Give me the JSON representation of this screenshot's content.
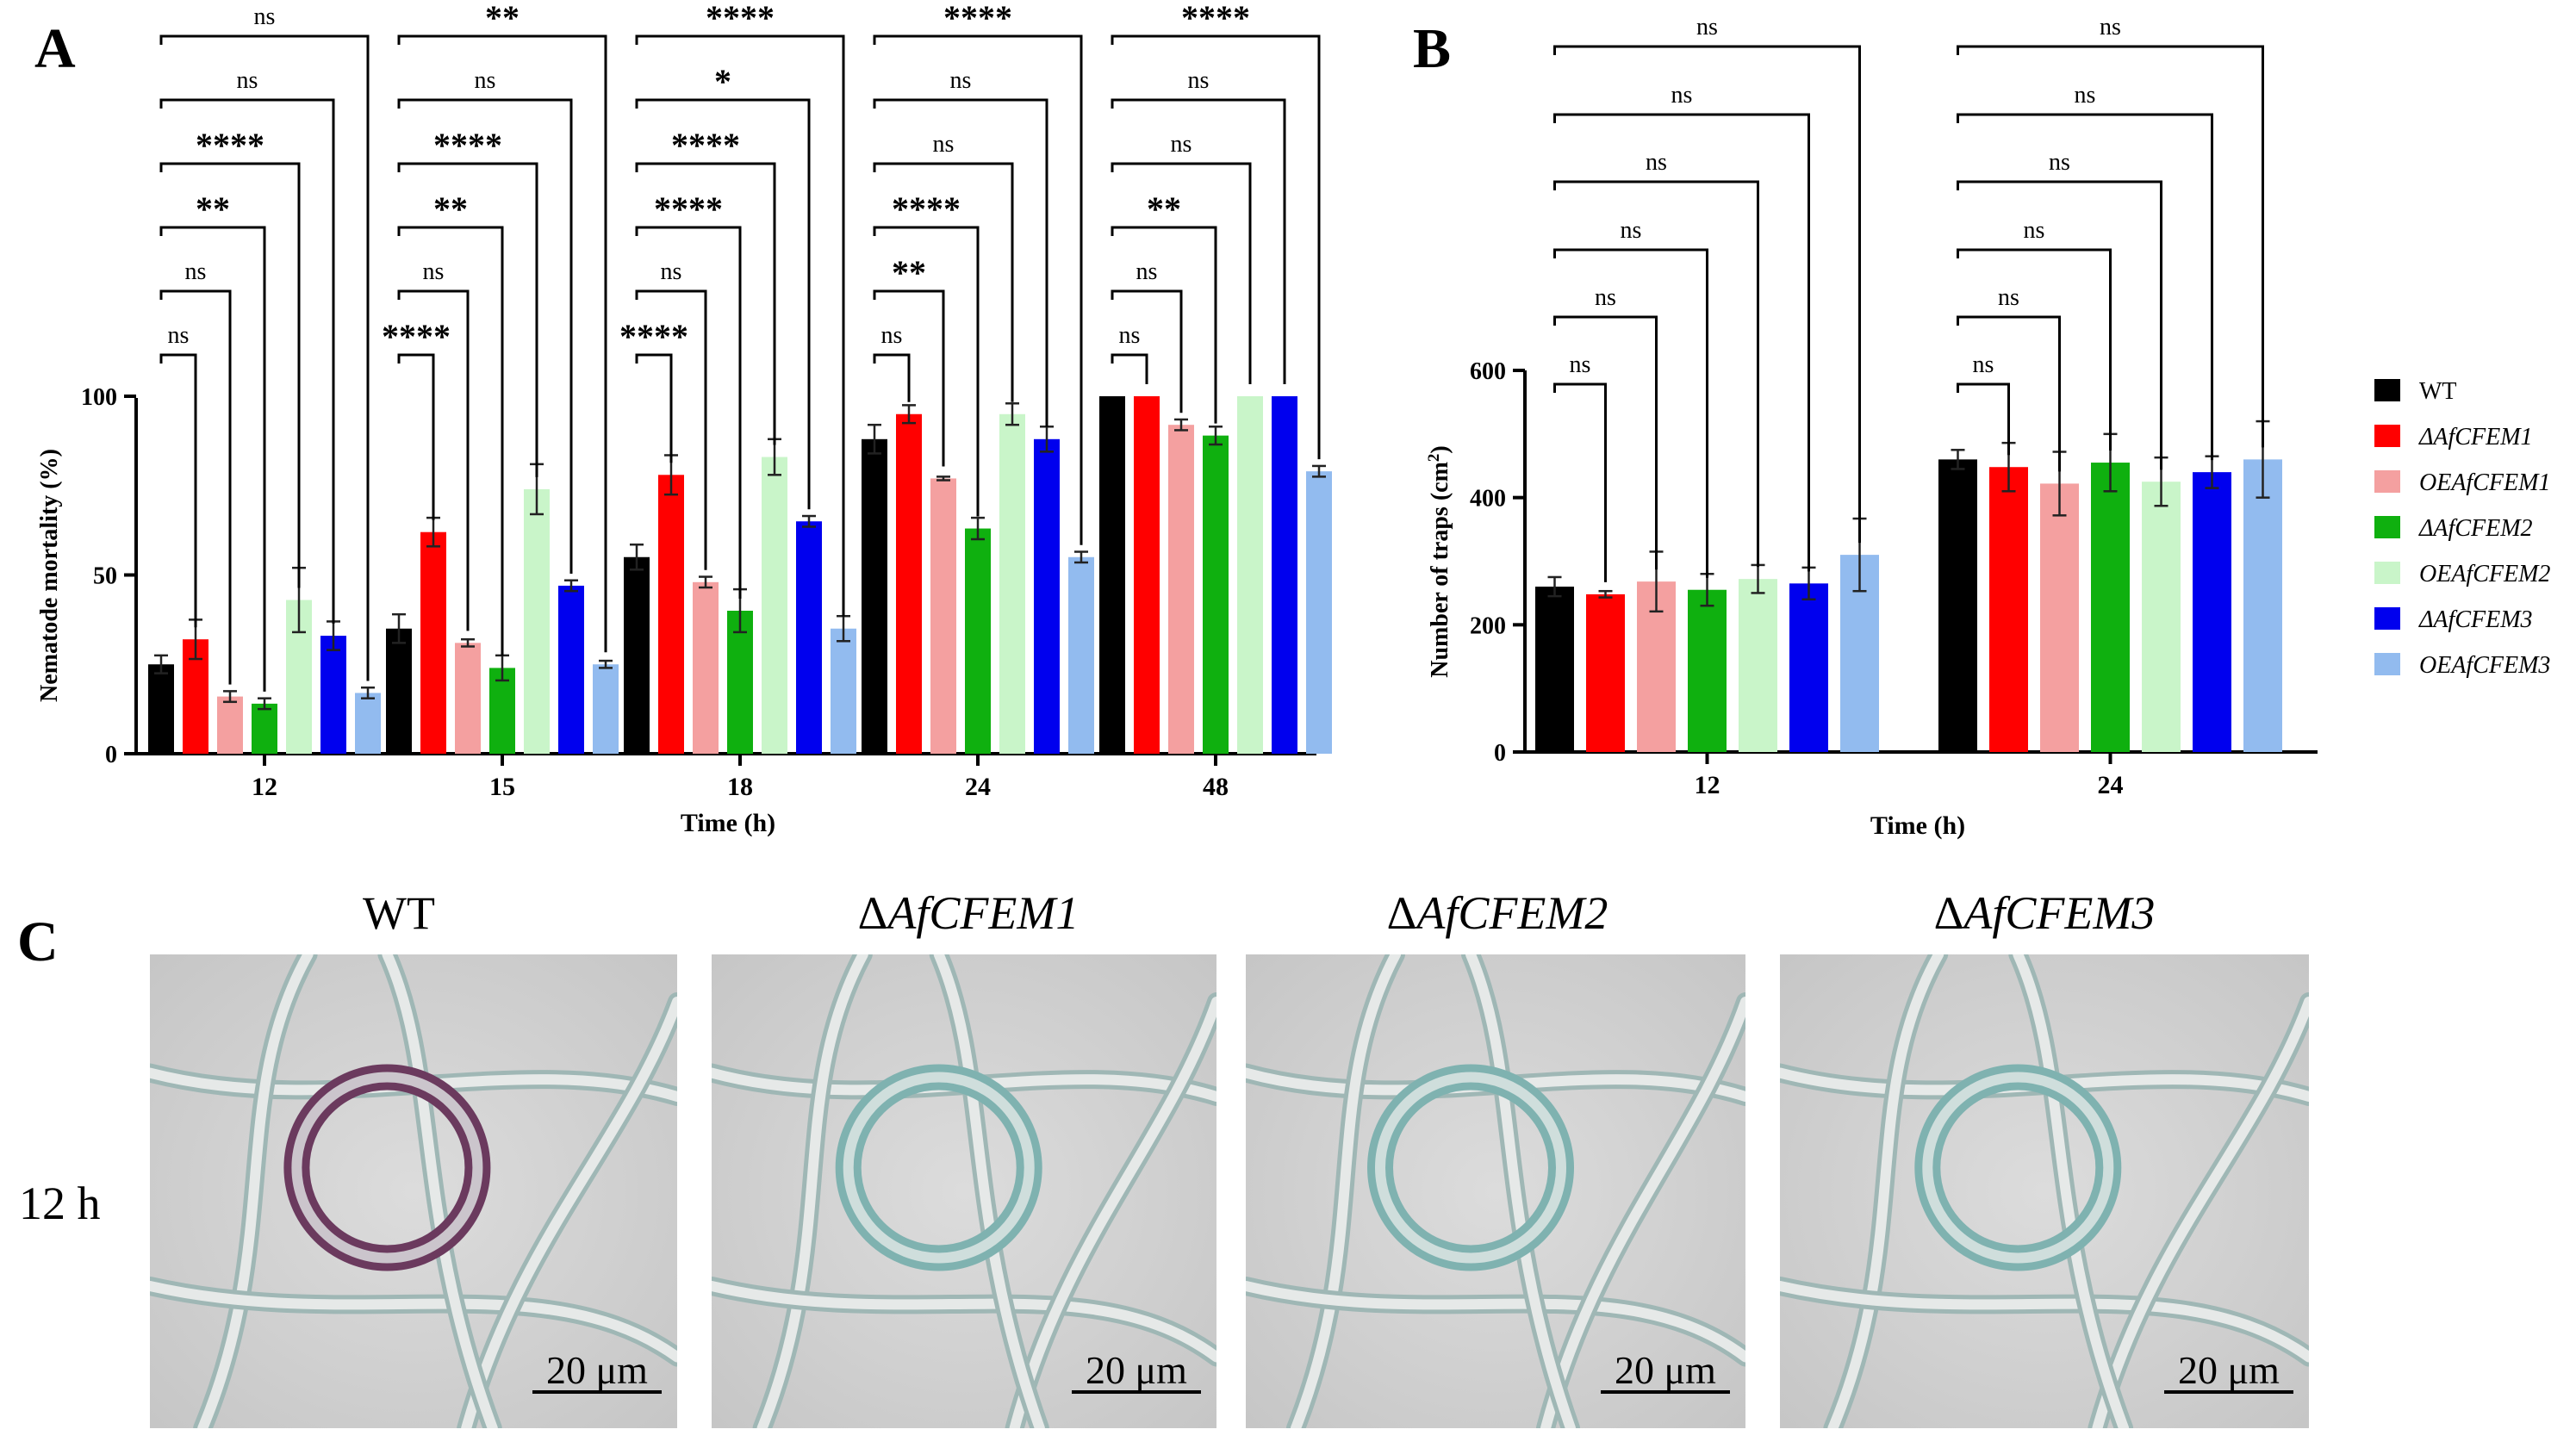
{
  "colors": {
    "WT": "#000000",
    "ΔAfCFEM1": "#ff0000",
    "OEAfCFEM1": "#f4a0a0",
    "ΔAfCFEM2": "#0fb00f",
    "OEAfCFEM2": "#c9f5c9",
    "ΔAfCFEM3": "#0000ee",
    "OEAfCFEM3": "#92bbef"
  },
  "panels": {
    "A": "A",
    "B": "B",
    "C": "C"
  },
  "chart_data": [
    {
      "panel": "A",
      "type": "bar",
      "title": "",
      "xlabel": "Time (h)",
      "ylabel": "Nematode mortality (%)",
      "ylim": [
        0,
        100
      ],
      "yticks": [
        0,
        50,
        100
      ],
      "categories": [
        "12",
        "15",
        "18",
        "24",
        "48"
      ],
      "series": [
        {
          "name": "WT",
          "values": [
            25,
            35,
            55,
            88,
            100
          ],
          "errors": [
            2.5,
            4,
            3.5,
            4,
            0
          ]
        },
        {
          "name": "ΔAfCFEM1",
          "values": [
            32,
            62,
            78,
            95,
            100
          ],
          "errors": [
            5.5,
            4,
            5.5,
            2.5,
            0
          ]
        },
        {
          "name": "OEAfCFEM1",
          "values": [
            16,
            31,
            48,
            77,
            92
          ],
          "errors": [
            1.5,
            1,
            1.5,
            0.5,
            1.5
          ]
        },
        {
          "name": "ΔAfCFEM2",
          "values": [
            14,
            24,
            40,
            63,
            89
          ],
          "errors": [
            1.5,
            3.5,
            6,
            3,
            2.5
          ]
        },
        {
          "name": "OEAfCFEM2",
          "values": [
            43,
            74,
            83,
            95,
            100
          ],
          "errors": [
            9,
            7,
            5,
            3,
            0
          ]
        },
        {
          "name": "ΔAfCFEM3",
          "values": [
            33,
            47,
            65,
            88,
            100
          ],
          "errors": [
            4,
            1.5,
            1.5,
            3.5,
            0
          ]
        },
        {
          "name": "OEAfCFEM3",
          "values": [
            17,
            25,
            35,
            55,
            79
          ],
          "errors": [
            1.5,
            1,
            3.5,
            1.5,
            1.5
          ]
        }
      ],
      "significance": [
        [
          "ns",
          "ns",
          "**",
          "****",
          "ns",
          "ns"
        ],
        [
          "****",
          "ns",
          "**",
          "****",
          "ns",
          "**"
        ],
        [
          "****",
          "ns",
          "****",
          "****",
          "*",
          "****"
        ],
        [
          "ns",
          "**",
          "****",
          "ns",
          "ns",
          "****"
        ],
        [
          "ns",
          "ns",
          "**",
          "ns",
          "ns",
          "****"
        ]
      ]
    },
    {
      "panel": "B",
      "type": "bar",
      "title": "",
      "xlabel": "Time (h)",
      "ylabel": "Number of traps (cm",
      "ylabel_sup": "2",
      "ylabel_end": ")",
      "ylim": [
        0,
        600
      ],
      "yticks": [
        0,
        200,
        400,
        600
      ],
      "categories": [
        "12",
        "24"
      ],
      "series": [
        {
          "name": "WT",
          "values": [
            260,
            460
          ],
          "errors": [
            15,
            15
          ]
        },
        {
          "name": "ΔAfCFEM1",
          "values": [
            248,
            448
          ],
          "errors": [
            5,
            38
          ]
        },
        {
          "name": "OEAfCFEM1",
          "values": [
            268,
            422
          ],
          "errors": [
            47,
            50
          ]
        },
        {
          "name": "ΔAfCFEM2",
          "values": [
            255,
            455
          ],
          "errors": [
            25,
            45
          ]
        },
        {
          "name": "OEAfCFEM2",
          "values": [
            272,
            425
          ],
          "errors": [
            22,
            38
          ]
        },
        {
          "name": "ΔAfCFEM3",
          "values": [
            265,
            440
          ],
          "errors": [
            25,
            25
          ]
        },
        {
          "name": "OEAfCFEM3",
          "values": [
            310,
            460
          ],
          "errors": [
            57,
            60
          ]
        }
      ],
      "significance": [
        [
          "ns",
          "ns",
          "ns",
          "ns",
          "ns",
          "ns"
        ],
        [
          "ns",
          "ns",
          "ns",
          "ns",
          "ns",
          "ns"
        ]
      ]
    }
  ],
  "legend": [
    "WT",
    "ΔAfCFEM1",
    "OEAfCFEM1",
    "ΔAfCFEM2",
    "OEAfCFEM2",
    "ΔAfCFEM3",
    "OEAfCFEM3"
  ],
  "micrographs": {
    "row_label": "12 h",
    "titles": [
      "WT",
      "ΔAfCFEM1",
      "ΔAfCFEM2",
      "ΔAfCFEM3"
    ],
    "scale_bar": "20 μm"
  }
}
